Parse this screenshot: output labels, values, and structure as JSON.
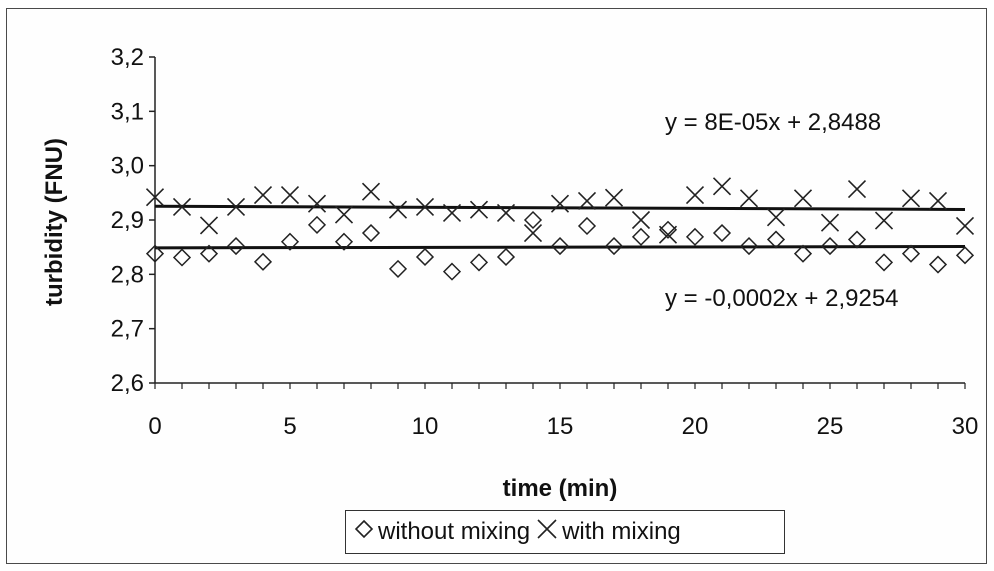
{
  "chart_data": {
    "type": "scatter",
    "xlabel": "time (min)",
    "ylabel": "turbidity (FNU)",
    "xlim": [
      0,
      30
    ],
    "ylim": [
      2.6,
      3.2
    ],
    "x_ticks": [
      "0",
      "5",
      "10",
      "15",
      "20",
      "25",
      "30"
    ],
    "y_ticks": [
      "2,6",
      "2,7",
      "2,8",
      "2,9",
      "3,0",
      "3,1",
      "3,2"
    ],
    "grid": false,
    "legend_position": "bottom",
    "x": [
      0,
      1,
      2,
      3,
      4,
      5,
      6,
      7,
      8,
      9,
      10,
      11,
      12,
      13,
      14,
      15,
      16,
      17,
      18,
      19,
      20,
      21,
      22,
      23,
      24,
      25,
      26,
      27,
      28,
      29,
      30
    ],
    "series": [
      {
        "name": "without mixing",
        "marker": "diamond",
        "values": [
          2.838,
          2.831,
          2.838,
          2.852,
          2.823,
          2.86,
          2.891,
          2.86,
          2.876,
          2.81,
          2.832,
          2.805,
          2.822,
          2.832,
          2.9,
          2.852,
          2.889,
          2.852,
          2.869,
          2.882,
          2.869,
          2.876,
          2.852,
          2.864,
          2.838,
          2.852,
          2.864,
          2.822,
          2.838,
          2.818,
          2.835
        ],
        "trendline": {
          "slope": 8e-05,
          "intercept": 2.8488,
          "label": "y = 8E-05x + 2,8488"
        }
      },
      {
        "name": "with mixing",
        "marker": "cross",
        "values": [
          2.942,
          2.924,
          2.89,
          2.924,
          2.946,
          2.946,
          2.93,
          2.91,
          2.952,
          2.919,
          2.924,
          2.913,
          2.919,
          2.913,
          2.876,
          2.93,
          2.935,
          2.941,
          2.9,
          2.873,
          2.946,
          2.962,
          2.94,
          2.905,
          2.94,
          2.895,
          2.957,
          2.899,
          2.94,
          2.935,
          2.889
        ],
        "trendline": {
          "slope": -0.0002,
          "intercept": 2.9254,
          "label": "y = -0,0002x + 2,9254"
        }
      }
    ]
  }
}
